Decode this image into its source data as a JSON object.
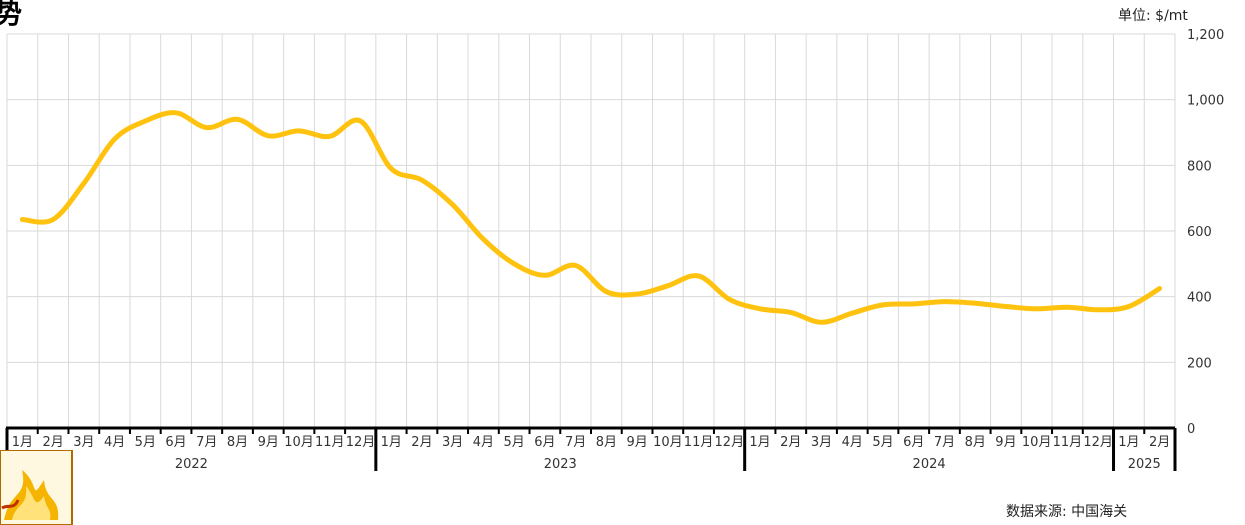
{
  "page": {
    "title": "势",
    "unit": "单位:  $/mt",
    "source": "数据来源:  中国海关"
  },
  "colors": {
    "line": "#FFC20E",
    "grid": "#d9d9d9",
    "axis": "#000000",
    "text": "#333333"
  },
  "chart_data": {
    "type": "line",
    "title": "势",
    "xlabel": "",
    "ylabel": "单位:  $/mt",
    "ylim": [
      0,
      1200
    ],
    "yticks": [
      0,
      200,
      400,
      600,
      800,
      1000,
      1200
    ],
    "grid": true,
    "x": [
      "1月",
      "2月",
      "3月",
      "4月",
      "5月",
      "6月",
      "7月",
      "8月",
      "9月",
      "10月",
      "11月",
      "12月",
      "1月",
      "2月",
      "3月",
      "4月",
      "5月",
      "6月",
      "7月",
      "8月",
      "9月",
      "10月",
      "11月",
      "12月",
      "1月",
      "2月",
      "3月",
      "4月",
      "5月",
      "6月",
      "7月",
      "8月",
      "9月",
      "10月",
      "11月",
      "12月",
      "1月",
      "2月"
    ],
    "years": [
      {
        "label": "2022",
        "months": 12
      },
      {
        "label": "2023",
        "months": 12
      },
      {
        "label": "2024",
        "months": 12
      },
      {
        "label": "2025",
        "months": 2
      }
    ],
    "series": [
      {
        "values": [
          635,
          635,
          745,
          880,
          935,
          960,
          915,
          940,
          890,
          905,
          888,
          935,
          790,
          755,
          680,
          575,
          500,
          465,
          495,
          415,
          408,
          433,
          463,
          392,
          363,
          352,
          322,
          350,
          375,
          378,
          385,
          380,
          370,
          363,
          368,
          360,
          370,
          425
        ]
      }
    ]
  }
}
